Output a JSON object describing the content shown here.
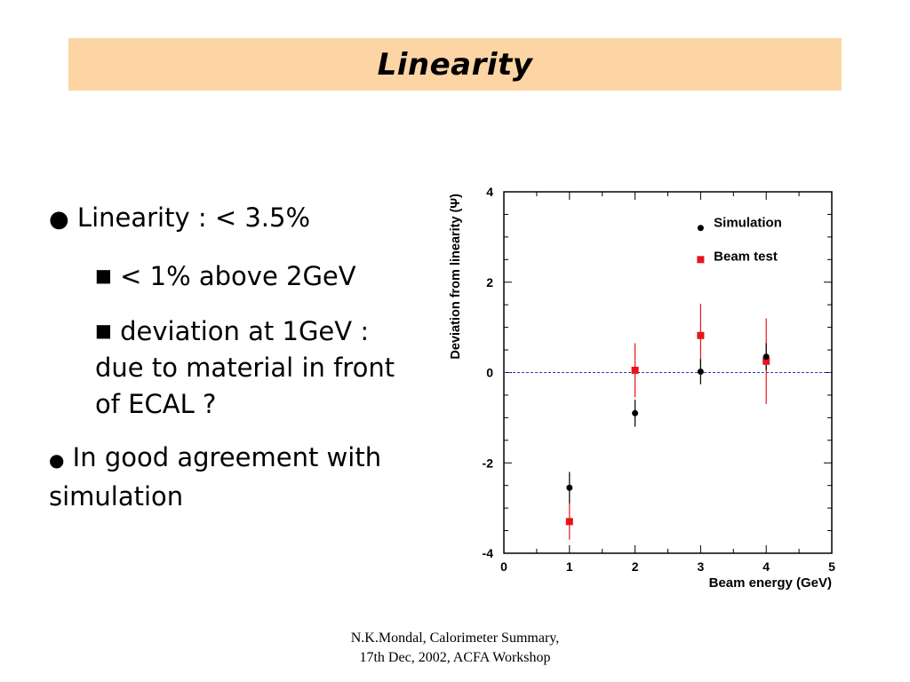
{
  "title": "Linearity",
  "bullets": {
    "b1_marker": "●",
    "b1_text": "Linearity : < 3.5%",
    "sub1_marker": "■",
    "sub1_text": "< 1% above 2GeV",
    "sub2_marker": "■",
    "sub2_text": "deviation at 1GeV : due to material in front of ECAL ?",
    "b2_marker": "●",
    "b2_text": "In good agreement with simulation"
  },
  "footer": {
    "line1": "N.K.Mondal, Calorimeter Summary,",
    "line2": "17th Dec, 2002, ACFA Workshop"
  },
  "chart_data": {
    "type": "scatter",
    "xlabel": "Beam energy (GeV)",
    "ylabel": "Deviation from linearity (Ψ)",
    "xlim": [
      0,
      5
    ],
    "ylim": [
      -4,
      4
    ],
    "xticks": [
      0,
      1,
      2,
      3,
      4,
      5
    ],
    "yticks": [
      -4,
      -2,
      0,
      2,
      4
    ],
    "reference_line": {
      "y": 0,
      "style": "dashed",
      "color": "#3333cc"
    },
    "legend_position": "top-right",
    "grid": false,
    "series": [
      {
        "name": "Simulation",
        "marker": "circle",
        "color": "#000000",
        "points": [
          {
            "x": 1,
            "y": -2.55,
            "err": 0.35
          },
          {
            "x": 2,
            "y": -0.9,
            "err": 0.3
          },
          {
            "x": 3,
            "y": 0.02,
            "err": 0.28
          },
          {
            "x": 4,
            "y": 0.35,
            "err": 0.3
          }
        ]
      },
      {
        "name": "Beam test",
        "marker": "square",
        "color": "#e8141b",
        "points": [
          {
            "x": 1,
            "y": -3.3,
            "err": 0.4
          },
          {
            "x": 2,
            "y": 0.05,
            "err": 0.6
          },
          {
            "x": 3,
            "y": 0.82,
            "err": 0.7
          },
          {
            "x": 4,
            "y": 0.25,
            "err": 0.95
          }
        ]
      }
    ]
  }
}
